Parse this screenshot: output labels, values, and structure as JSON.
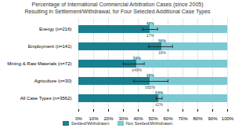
{
  "chart_data": {
    "type": "bar",
    "orientation": "horizontal",
    "stacked": true,
    "title": "Percentage of International Commercial Arbitration Cases (since 2005)",
    "subtitle": "Resulting in Settlement/Withdrawal, for Four Selected Additional Case Types",
    "categories": [
      "Energy (n=216)",
      "Employment (n=141)",
      "Mining & Raw Materials (n=72)",
      "Agriculture (n=30)",
      "All Case Types (n=3562)"
    ],
    "series": [
      {
        "name": "Settled/Withdrawn",
        "color": "#1a7f8e",
        "values": [
          48,
          56,
          39,
          48,
          54
        ],
        "value_labels": [
          "48%",
          "56%",
          "39%",
          "48%",
          "54%"
        ],
        "error_low": [
          43,
          47,
          30,
          37,
          52
        ],
        "error_high": [
          53,
          63,
          44,
          60,
          56
        ]
      },
      {
        "name": "Not Settled/Withdrawn",
        "color": "#7ac8d2",
        "values": [
          52,
          44,
          61,
          52,
          46
        ]
      }
    ],
    "annotations": [
      "17%",
      "18%",
      "±49%",
      "±65%",
      "±2%"
    ],
    "xlim": [
      0,
      100
    ],
    "xticks": [
      {
        "value": 0,
        "label": "0%"
      },
      {
        "value": 10,
        "label": "10%"
      },
      {
        "value": 20,
        "label": "20%"
      },
      {
        "value": 30,
        "label": "30%"
      },
      {
        "value": 40,
        "label": "40%"
      },
      {
        "value": 50,
        "label": "50%"
      },
      {
        "value": 60,
        "label": "60%"
      },
      {
        "value": 70,
        "label": "70%"
      },
      {
        "value": 80,
        "label": "80%"
      },
      {
        "value": 90,
        "label": "90%"
      },
      {
        "value": 100,
        "label": "100%"
      }
    ],
    "grid": true,
    "legend": "bottom"
  }
}
